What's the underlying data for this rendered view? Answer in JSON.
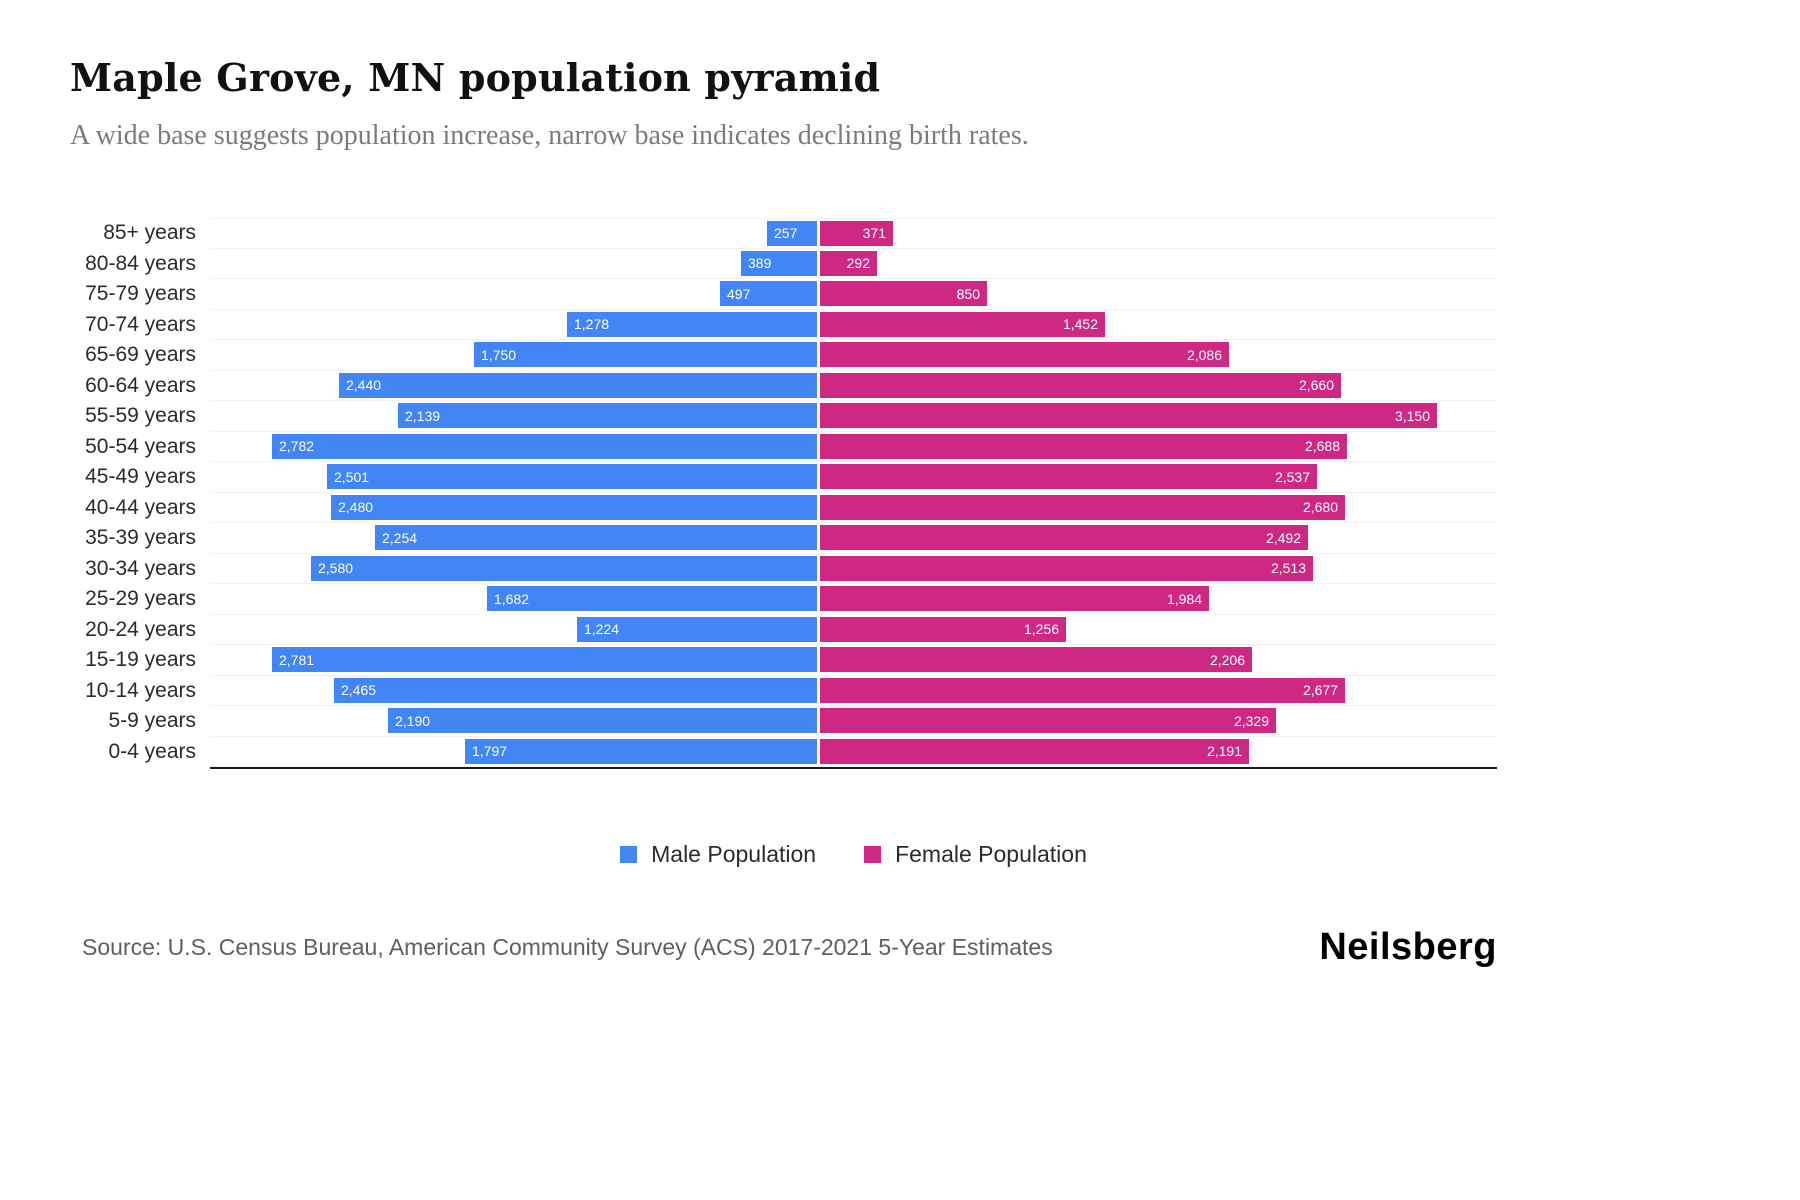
{
  "header": {
    "title": "Maple Grove, MN population pyramid",
    "subtitle": "A wide base suggests population increase, narrow base indicates declining birth rates."
  },
  "chart_data": {
    "type": "bar",
    "variant": "population-pyramid",
    "title": "Maple Grove, MN population pyramid",
    "xlabel": "",
    "ylabel": "",
    "categories": [
      "85+ years",
      "80-84 years",
      "75-79 years",
      "70-74 years",
      "65-69 years",
      "60-64 years",
      "55-59 years",
      "50-54 years",
      "45-49 years",
      "40-44 years",
      "35-39 years",
      "30-34 years",
      "25-29 years",
      "20-24 years",
      "15-19 years",
      "10-14 years",
      "5-9 years",
      "0-4 years"
    ],
    "series": [
      {
        "name": "Male Population",
        "color": "#4285F4",
        "direction": "left",
        "values": [
          257,
          389,
          497,
          1278,
          1750,
          2440,
          2139,
          2782,
          2501,
          2480,
          2254,
          2580,
          1682,
          1224,
          2781,
          2465,
          2190,
          1797
        ]
      },
      {
        "name": "Female Population",
        "color": "#CE2784",
        "direction": "right",
        "values": [
          371,
          292,
          850,
          1452,
          2086,
          2660,
          3150,
          2688,
          2537,
          2680,
          2492,
          2513,
          1984,
          1256,
          2206,
          2677,
          2329,
          2191
        ]
      }
    ],
    "xlim_each_side": [
      0,
      3200
    ],
    "value_labels": "inside-outer-end, white, thousands separators",
    "legend_position": "bottom-center",
    "grid": "horizontal-light"
  },
  "legend": {
    "male_label": "Male Population",
    "female_label": "Female Population"
  },
  "footer": {
    "source": "Source: U.S. Census Bureau, American Community Survey (ACS) 2017-2021 5-Year Estimates",
    "brand": "Neilsberg"
  }
}
